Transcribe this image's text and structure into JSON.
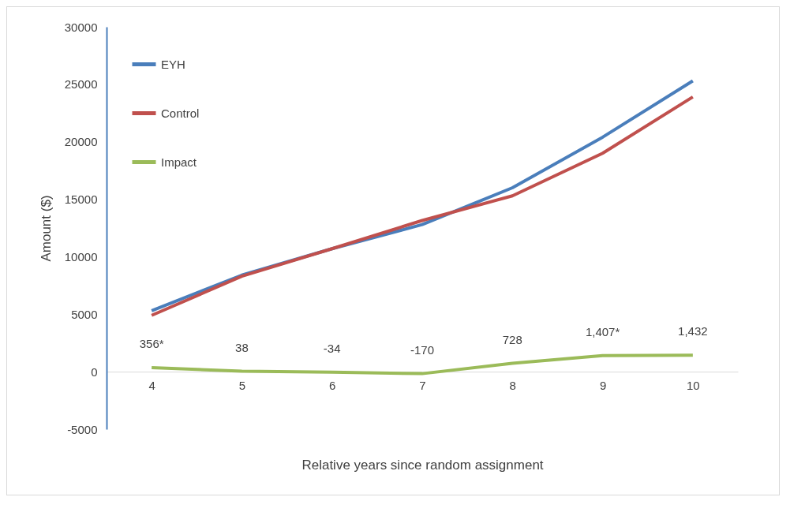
{
  "chart_data": {
    "type": "line",
    "xlabel": "Relative years since random assignment",
    "ylabel": "Amount ($)",
    "categories": [
      "4",
      "5",
      "6",
      "7",
      "8",
      "9",
      "10"
    ],
    "series": [
      {
        "name": "EYH",
        "color": "#4a7ebb",
        "values": [
          5300,
          8400,
          10700,
          12800,
          16000,
          20400,
          25300
        ]
      },
      {
        "name": "Control",
        "color": "#c0504d",
        "values": [
          4900,
          8300,
          10700,
          13150,
          15300,
          19000,
          23900
        ]
      },
      {
        "name": "Impact",
        "color": "#9bbb59",
        "values": [
          356,
          38,
          -34,
          -170,
          728,
          1407,
          1432
        ],
        "value_labels": [
          "356*",
          "38",
          "-34",
          "-170",
          "728",
          "1,407*",
          "1,432"
        ]
      }
    ],
    "ylim": [
      -5000,
      30000
    ],
    "yticks": [
      -5000,
      0,
      5000,
      10000,
      15000,
      20000,
      25000,
      30000
    ],
    "grid": false,
    "legend": "top left",
    "line_style": "solid",
    "marker": "none"
  }
}
